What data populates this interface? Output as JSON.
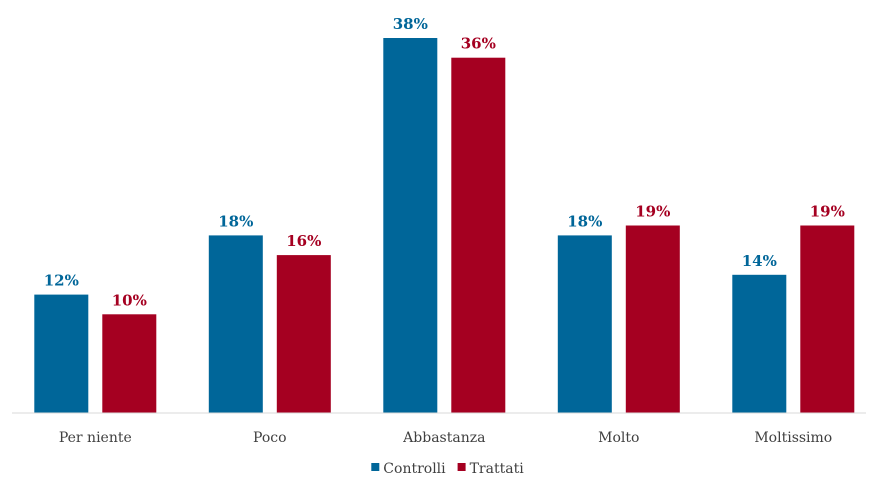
{
  "chart_data": {
    "type": "bar",
    "categories": [
      "Per niente",
      "Poco",
      "Abbastanza",
      "Molto",
      "Moltissimo"
    ],
    "series": [
      {
        "name": "Controlli",
        "values": [
          12,
          18,
          38,
          18,
          14
        ],
        "labels": [
          "12%",
          "18%",
          "38%",
          "18%",
          "14%"
        ],
        "color": "#006699"
      },
      {
        "name": "Trattati",
        "values": [
          10,
          16,
          36,
          19,
          19
        ],
        "labels": [
          "10%",
          "16%",
          "36%",
          "19%",
          "19%"
        ],
        "color": "#A50021"
      }
    ],
    "ylim": [
      0,
      40
    ],
    "grid": false,
    "legend": "bottom",
    "axis_line_color": "#D9D9D9"
  }
}
